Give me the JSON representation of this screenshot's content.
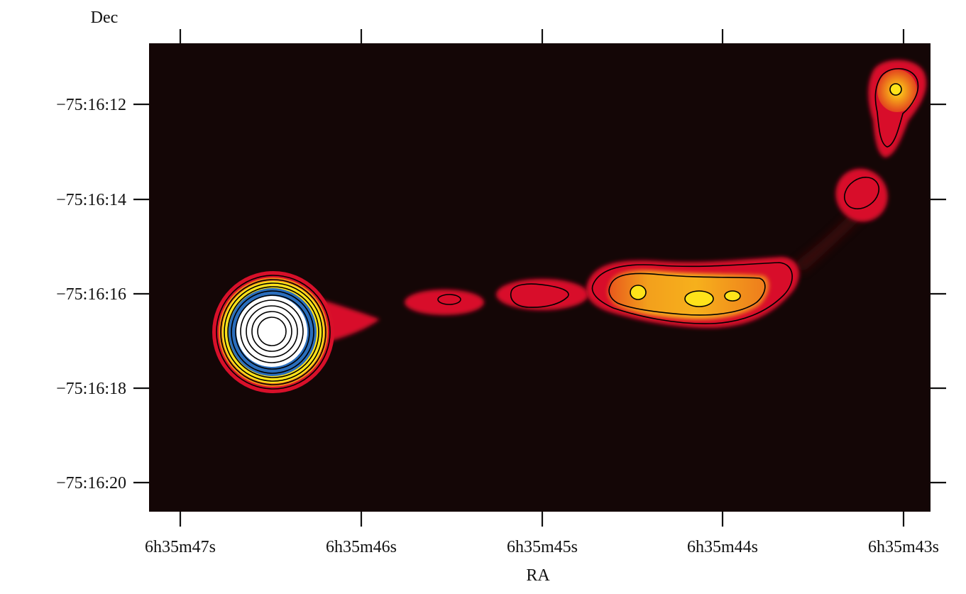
{
  "chart_data": {
    "type": "heatmap",
    "title": "",
    "xlabel": "RA",
    "ylabel": "Dec",
    "x_ticks": [
      "6h35m47s",
      "6h35m46s",
      "6h35m45s",
      "6h35m44s",
      "6h35m43s"
    ],
    "y_ticks": [
      "-75:16:12",
      "-75:16:14",
      "-75:16:16",
      "-75:16:18",
      "-75:16:20"
    ],
    "x_range_seconds": [
      47.17,
      42.85
    ],
    "y_range_arcsec": [
      10.7,
      20.6
    ],
    "colors": {
      "background": "#140606",
      "red": "#d8102a",
      "orange": "#ef7a18",
      "yellow": "#ffe31a",
      "blue": "#2a6ebd",
      "white": "#ffffff",
      "contour": "#000000"
    },
    "features": [
      {
        "name": "core",
        "ra_s": 46.52,
        "dec_s": 16.7
      },
      {
        "name": "knot",
        "ra_s": 45.55,
        "dec_s": 16.1
      },
      {
        "name": "knot",
        "ra_s": 45.0,
        "dec_s": 16.0
      },
      {
        "name": "knot",
        "ra_s": 44.45,
        "dec_s": 16.05
      },
      {
        "name": "knot",
        "ra_s": 44.1,
        "dec_s": 16.05
      },
      {
        "name": "knot",
        "ra_s": 43.25,
        "dec_s": 13.9
      },
      {
        "name": "knot",
        "ra_s": 43.02,
        "dec_s": 11.7
      }
    ]
  }
}
